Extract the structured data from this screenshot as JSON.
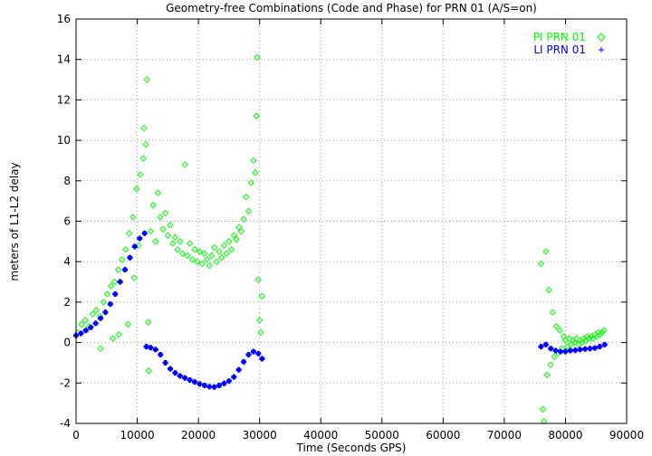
{
  "chart_data": {
    "type": "scatter",
    "title": "Geometry-free Combinations (Code and Phase) for PRN 01 (A/S=on)",
    "xlabel": "Time (Seconds GPS)",
    "ylabel": "meters of L1-L2 delay",
    "xlim": [
      0,
      90000
    ],
    "ylim": [
      -4,
      16
    ],
    "xticks": [
      0,
      10000,
      20000,
      30000,
      40000,
      50000,
      60000,
      70000,
      80000,
      90000
    ],
    "yticks": [
      -4,
      -2,
      0,
      2,
      4,
      6,
      8,
      10,
      12,
      14,
      16
    ],
    "xtick_labels": [
      "0",
      "10000",
      "20000",
      "30000",
      "40000",
      "50000",
      "60000",
      "70000",
      "80000",
      "90000"
    ],
    "ytick_labels": [
      "-4",
      "-2",
      "0",
      "2",
      "4",
      "6",
      "8",
      "10",
      "12",
      "14",
      "16"
    ],
    "grid": true,
    "legend_position": "top-right",
    "series": [
      {
        "name": "PI PRN 01",
        "marker": "diamond",
        "color": "#00ff00",
        "points": [
          [
            300,
            0.5
          ],
          [
            900,
            0.9
          ],
          [
            1500,
            1.1
          ],
          [
            2100,
            0.8
          ],
          [
            2700,
            1.4
          ],
          [
            3300,
            1.6
          ],
          [
            3900,
            1.3
          ],
          [
            4500,
            2.0
          ],
          [
            5100,
            2.4
          ],
          [
            5700,
            2.8
          ],
          [
            6300,
            3.0
          ],
          [
            6900,
            3.6
          ],
          [
            7500,
            4.1
          ],
          [
            8100,
            4.6
          ],
          [
            8700,
            5.4
          ],
          [
            9300,
            6.2
          ],
          [
            9900,
            7.6
          ],
          [
            10500,
            8.3
          ],
          [
            11000,
            9.1
          ],
          [
            11400,
            9.8
          ],
          [
            4000,
            -0.3
          ],
          [
            6000,
            0.2
          ],
          [
            7000,
            0.4
          ],
          [
            8500,
            0.9
          ],
          [
            9500,
            3.2
          ],
          [
            10200,
            4.8
          ],
          [
            11100,
            10.6
          ],
          [
            11600,
            13.0
          ],
          [
            11800,
            1.0
          ],
          [
            11900,
            -1.4
          ],
          [
            12200,
            5.5
          ],
          [
            12600,
            6.8
          ],
          [
            13000,
            5.0
          ],
          [
            13400,
            7.4
          ],
          [
            13800,
            6.2
          ],
          [
            14200,
            5.6
          ],
          [
            14600,
            6.4
          ],
          [
            15000,
            5.3
          ],
          [
            15400,
            5.8
          ],
          [
            15800,
            4.9
          ],
          [
            16200,
            5.2
          ],
          [
            16600,
            4.6
          ],
          [
            17000,
            5.0
          ],
          [
            17400,
            4.4
          ],
          [
            17800,
            8.8
          ],
          [
            18200,
            4.3
          ],
          [
            18600,
            4.9
          ],
          [
            19000,
            4.1
          ],
          [
            19400,
            4.6
          ],
          [
            19800,
            4.0
          ],
          [
            20200,
            4.5
          ],
          [
            20600,
            3.9
          ],
          [
            21000,
            4.4
          ],
          [
            21400,
            4.1
          ],
          [
            21800,
            3.8
          ],
          [
            22200,
            4.3
          ],
          [
            22600,
            4.7
          ],
          [
            23000,
            4.0
          ],
          [
            23400,
            4.5
          ],
          [
            23800,
            4.2
          ],
          [
            24200,
            4.8
          ],
          [
            24600,
            4.4
          ],
          [
            25000,
            5.0
          ],
          [
            25400,
            4.6
          ],
          [
            25800,
            5.3
          ],
          [
            26200,
            5.1
          ],
          [
            26600,
            5.7
          ],
          [
            27000,
            5.5
          ],
          [
            27400,
            6.1
          ],
          [
            27800,
            7.2
          ],
          [
            28200,
            6.5
          ],
          [
            28600,
            7.9
          ],
          [
            29000,
            9.0
          ],
          [
            29300,
            8.4
          ],
          [
            29500,
            11.2
          ],
          [
            29600,
            14.1
          ],
          [
            29800,
            3.1
          ],
          [
            30000,
            1.1
          ],
          [
            30200,
            0.5
          ],
          [
            30400,
            2.3
          ],
          [
            76000,
            3.9
          ],
          [
            76300,
            -3.3
          ],
          [
            76500,
            -3.9
          ],
          [
            76800,
            4.5
          ],
          [
            77000,
            -1.6
          ],
          [
            77300,
            2.6
          ],
          [
            77600,
            -1.1
          ],
          [
            77900,
            1.5
          ],
          [
            78200,
            -0.7
          ],
          [
            78500,
            0.8
          ],
          [
            78800,
            -0.5
          ],
          [
            79100,
            0.6
          ],
          [
            79400,
            -0.3
          ],
          [
            79700,
            0.3
          ],
          [
            80000,
            0.1
          ],
          [
            80300,
            -0.2
          ],
          [
            80600,
            0.2
          ],
          [
            80900,
            -0.1
          ],
          [
            81200,
            0.1
          ],
          [
            81500,
            0.0
          ],
          [
            81800,
            0.2
          ],
          [
            82100,
            -0.1
          ],
          [
            82400,
            0.1
          ],
          [
            82700,
            0.0
          ],
          [
            83000,
            0.2
          ],
          [
            83300,
            0.1
          ],
          [
            83600,
            0.3
          ],
          [
            83900,
            0.2
          ],
          [
            84200,
            0.3
          ],
          [
            84500,
            0.2
          ],
          [
            84800,
            0.4
          ],
          [
            85100,
            0.3
          ],
          [
            85400,
            0.5
          ],
          [
            85700,
            0.4
          ],
          [
            86000,
            0.5
          ],
          [
            86300,
            0.6
          ]
        ]
      },
      {
        "name": "LI PRN 01",
        "marker": "plus",
        "color": "#0000ff",
        "points": [
          [
            0,
            0.35
          ],
          [
            800,
            0.45
          ],
          [
            1600,
            0.6
          ],
          [
            2400,
            0.75
          ],
          [
            3200,
            0.95
          ],
          [
            4000,
            1.2
          ],
          [
            4800,
            1.5
          ],
          [
            5600,
            1.9
          ],
          [
            6400,
            2.4
          ],
          [
            7200,
            3.0
          ],
          [
            8000,
            3.6
          ],
          [
            8800,
            4.2
          ],
          [
            9600,
            4.75
          ],
          [
            10400,
            5.15
          ],
          [
            11200,
            5.4
          ],
          [
            11500,
            -0.2
          ],
          [
            12200,
            -0.25
          ],
          [
            13000,
            -0.35
          ],
          [
            13800,
            -0.6
          ],
          [
            14600,
            -1.0
          ],
          [
            15400,
            -1.3
          ],
          [
            16200,
            -1.5
          ],
          [
            17000,
            -1.65
          ],
          [
            17800,
            -1.75
          ],
          [
            18600,
            -1.85
          ],
          [
            19400,
            -1.95
          ],
          [
            20200,
            -2.05
          ],
          [
            21000,
            -2.12
          ],
          [
            21800,
            -2.18
          ],
          [
            22600,
            -2.2
          ],
          [
            23400,
            -2.12
          ],
          [
            24200,
            -2.02
          ],
          [
            25000,
            -1.9
          ],
          [
            25800,
            -1.7
          ],
          [
            26600,
            -1.35
          ],
          [
            27400,
            -0.95
          ],
          [
            28200,
            -0.6
          ],
          [
            29000,
            -0.45
          ],
          [
            29800,
            -0.55
          ],
          [
            30400,
            -0.8
          ],
          [
            76000,
            -0.2
          ],
          [
            76800,
            -0.1
          ],
          [
            77600,
            -0.3
          ],
          [
            78400,
            -0.4
          ],
          [
            79200,
            -0.45
          ],
          [
            80000,
            -0.45
          ],
          [
            80800,
            -0.4
          ],
          [
            81600,
            -0.38
          ],
          [
            82400,
            -0.35
          ],
          [
            83200,
            -0.32
          ],
          [
            84000,
            -0.3
          ],
          [
            84800,
            -0.27
          ],
          [
            85600,
            -0.2
          ],
          [
            86400,
            -0.1
          ]
        ]
      }
    ]
  }
}
